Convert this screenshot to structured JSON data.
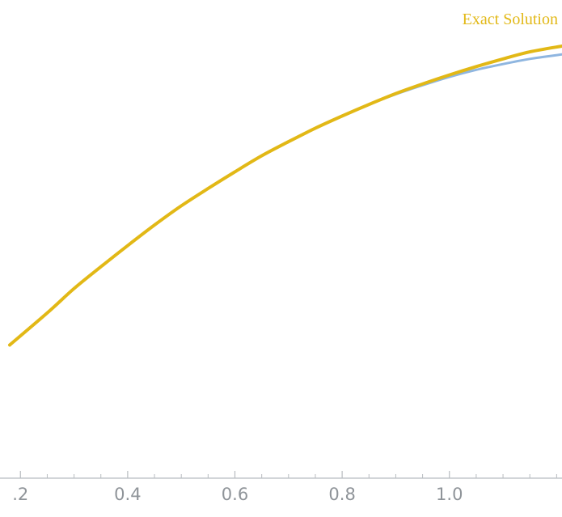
{
  "chart_data": {
    "type": "line",
    "title": "",
    "xlabel": "",
    "ylabel": "",
    "xlim": [
      0.18,
      1.21
    ],
    "ylim": [
      0.3,
      1.0
    ],
    "grid": false,
    "x_ticks": [
      {
        "value": 0.2,
        "label": ".2"
      },
      {
        "value": 0.4,
        "label": "0.4"
      },
      {
        "value": 0.6,
        "label": "0.6"
      },
      {
        "value": 0.8,
        "label": "0.8"
      },
      {
        "value": 1.0,
        "label": "1.0"
      }
    ],
    "x_minor_tick_step": 0.05,
    "series": [
      {
        "name": "",
        "color": "#8fb6e0",
        "x": [
          0.18,
          0.25,
          0.3,
          0.35,
          0.4,
          0.45,
          0.5,
          0.55,
          0.6,
          0.65,
          0.7,
          0.75,
          0.8,
          0.85,
          0.9,
          0.95,
          1.0,
          1.05,
          1.1,
          1.15,
          1.21
        ],
        "y": [
          0.5,
          0.55,
          0.588,
          0.622,
          0.655,
          0.687,
          0.717,
          0.744,
          0.77,
          0.795,
          0.817,
          0.838,
          0.857,
          0.875,
          0.891,
          0.905,
          0.918,
          0.929,
          0.938,
          0.946,
          0.953
        ]
      },
      {
        "name": "Exact Solution",
        "color": "#e2b816",
        "x": [
          0.18,
          0.25,
          0.3,
          0.35,
          0.4,
          0.45,
          0.5,
          0.55,
          0.6,
          0.65,
          0.7,
          0.75,
          0.8,
          0.85,
          0.9,
          0.95,
          1.0,
          1.05,
          1.1,
          1.15,
          1.21
        ],
        "y": [
          0.5,
          0.55,
          0.588,
          0.622,
          0.655,
          0.687,
          0.717,
          0.744,
          0.77,
          0.795,
          0.817,
          0.838,
          0.857,
          0.875,
          0.892,
          0.907,
          0.921,
          0.934,
          0.946,
          0.957,
          0.966
        ]
      }
    ],
    "axis_color": "#b8bcc0"
  }
}
